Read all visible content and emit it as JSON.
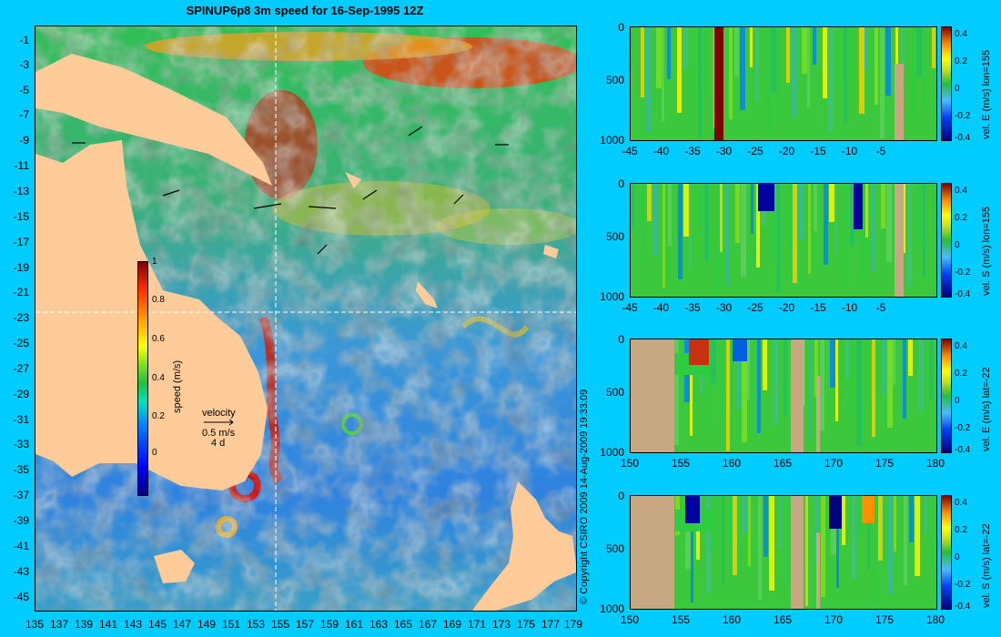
{
  "title": "SPINUP6p8 3m speed for 16-Sep-1995 12Z",
  "map": {
    "lat_ticks": [
      "-1",
      "-3",
      "-5",
      "-7",
      "-9",
      "-11",
      "-13",
      "-15",
      "-17",
      "-19",
      "-21",
      "-23",
      "-25",
      "-27",
      "-29",
      "-31",
      "-33",
      "-35",
      "-37",
      "-39",
      "-41",
      "-43",
      "-45"
    ],
    "lon_ticks": [
      "135",
      "137",
      "139",
      "141",
      "143",
      "145",
      "147",
      "149",
      "151",
      "153",
      "155",
      "157",
      "159",
      "161",
      "163",
      "165",
      "167",
      "169",
      "171",
      "173",
      "175",
      "177",
      "179"
    ],
    "section_lon": 155,
    "section_lat": -22,
    "colorbar": {
      "label": "speed (m/s)",
      "ticks": [
        "1",
        "0.8",
        "0.6",
        "0.4",
        "0.2",
        "0"
      ]
    },
    "legend": {
      "title": "velocity",
      "speed": "0.5 m/s",
      "duration": "4 d"
    }
  },
  "copyright": "© Copyright CSIRO 2009   14-Aug-2009 19:33:09",
  "panels": [
    {
      "xticks": [
        "-45",
        "-40",
        "-35",
        "-30",
        "-25",
        "-20",
        "-15",
        "-10",
        "-5"
      ],
      "yticks": [
        "0",
        "500",
        "1000"
      ],
      "cb_ticks": [
        "0.4",
        "0.2",
        "0",
        "-0.2",
        "-0.4"
      ],
      "label": "vel. E (m/s) lon=155"
    },
    {
      "xticks": [
        "-45",
        "-40",
        "-35",
        "-30",
        "-25",
        "-20",
        "-15",
        "-10",
        "-5"
      ],
      "yticks": [
        "0",
        "500",
        "1000"
      ],
      "cb_ticks": [
        "0.4",
        "0.2",
        "0",
        "-0.2",
        "-0.4"
      ],
      "label": "vel. S (m/s) lon=155"
    },
    {
      "xticks": [
        "150",
        "155",
        "160",
        "165",
        "170",
        "175",
        "180"
      ],
      "yticks": [
        "0",
        "500",
        "1000"
      ],
      "cb_ticks": [
        "0.4",
        "0.2",
        "0",
        "-0.2",
        "-0.4"
      ],
      "label": "vel. E (m/s) lat=-22"
    },
    {
      "xticks": [
        "150",
        "155",
        "160",
        "165",
        "170",
        "175",
        "180"
      ],
      "yticks": [
        "0",
        "500",
        "1000"
      ],
      "cb_ticks": [
        "0.4",
        "0.2",
        "0",
        "-0.2",
        "-0.4"
      ],
      "label": "vel. S (m/s) lat=-22"
    }
  ],
  "colors": {
    "background": "#00ccff",
    "land": "#ffcc99",
    "section_land": "#c8a882",
    "ocean_blue": "#3a8fe6",
    "ocean_green": "#2ecc40"
  }
}
